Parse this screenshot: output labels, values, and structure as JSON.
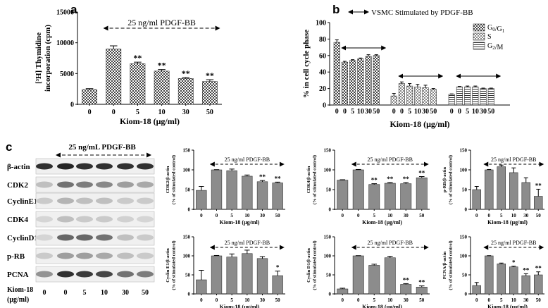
{
  "figure": {
    "panel_labels": [
      "a",
      "b",
      "c"
    ]
  },
  "colors": {
    "hatch": "#555555",
    "bar_gray": "#8c8c8c",
    "axis": "#000000"
  },
  "chart_data": [
    {
      "id": "a",
      "type": "bar",
      "fill": "checker",
      "categories": [
        "0",
        "0",
        "5",
        "10",
        "30",
        "50"
      ],
      "values": [
        2400,
        9000,
        6600,
        5400,
        4200,
        3700
      ],
      "errors": [
        150,
        500,
        250,
        250,
        150,
        300
      ],
      "marks": [
        "",
        "",
        "**",
        "**",
        "**",
        "**"
      ],
      "ylabel_lines": [
        "[³H] Thymidine",
        "incorporation (cpm)"
      ],
      "xlabel": "Kiom-18 (μg/ml)",
      "yticks": [
        "0",
        "5000",
        "10000",
        "15000"
      ],
      "ylim": [
        0,
        15000
      ],
      "annotation": "25 ng/ml PDGF-BB",
      "grid": false
    },
    {
      "id": "b",
      "type": "bar",
      "categories": [
        "0",
        "0",
        "5",
        "10",
        "30",
        "50"
      ],
      "series": [
        {
          "name": "G0/G1",
          "fill": "checker",
          "values": [
            76,
            52,
            54,
            56,
            59,
            60
          ],
          "errors": [
            3,
            1,
            1,
            1,
            2,
            1
          ]
        },
        {
          "name": "S",
          "fill": "dots",
          "values": [
            11,
            26,
            23,
            22,
            21,
            19
          ],
          "errors": [
            3,
            2,
            3,
            3,
            3,
            1
          ]
        },
        {
          "name": "G2/M",
          "fill": "hlines",
          "values": [
            13,
            22,
            22,
            22,
            20,
            20
          ],
          "errors": [
            0.5,
            0.5,
            1,
            1,
            0.5,
            0.5
          ]
        }
      ],
      "legend_labels": [
        {
          "base": "G",
          "sub": "0",
          "mid": "/G",
          "sub2": "1"
        },
        {
          "base": "S",
          "sub": "",
          "mid": "",
          "sub2": ""
        },
        {
          "base": "G",
          "sub": "2",
          "mid": "/M",
          "sub2": ""
        }
      ],
      "legend_position": "top-right",
      "ylabel": "% in cell cycle phase",
      "xlabel": "Kiom-18 (μg/ml)",
      "yticks": [
        "0",
        "20",
        "40",
        "60",
        "80",
        "100"
      ],
      "ylim": [
        0,
        100
      ],
      "annotation": "VSMC Stimulated by PDGF-BB",
      "grid": false
    },
    {
      "id": "c1",
      "type": "bar",
      "categories": [
        "0",
        "0",
        "5",
        "10",
        "30",
        "50"
      ],
      "values": [
        48,
        100,
        98,
        84,
        70,
        67
      ],
      "errors": [
        10,
        0.5,
        4,
        3,
        3,
        2
      ],
      "marks": [
        "",
        "",
        "",
        "",
        "**",
        "**"
      ],
      "ylabel_lines": [
        "CDK2/β-actin",
        "(% of stimulated control)"
      ],
      "xlabel": "Kiom-18 (μg/ml)",
      "yticks": [
        "0",
        "50",
        "100",
        "150"
      ],
      "ylim": [
        0,
        150
      ],
      "annotation": "25 ng/ml PDGF-BB"
    },
    {
      "id": "c2",
      "type": "bar",
      "categories": [
        "0",
        "0",
        "5",
        "10",
        "30",
        "50"
      ],
      "values": [
        74,
        100,
        63,
        66,
        65,
        80
      ],
      "errors": [
        1,
        1,
        2,
        2,
        3,
        3
      ],
      "marks": [
        "",
        "",
        "**",
        "**",
        "**",
        "**"
      ],
      "ylabel_lines": [
        "CDK4/β-actin",
        "(% of stimulated control)"
      ],
      "xlabel": "Kiom-18 (μg/ml)",
      "yticks": [
        "0",
        "50",
        "100",
        "150"
      ],
      "ylim": [
        0,
        150
      ],
      "annotation": "25 ng/ml PDGF-BB"
    },
    {
      "id": "c3",
      "type": "bar",
      "categories": [
        "0",
        "0",
        "5",
        "10",
        "30",
        "50"
      ],
      "values": [
        50,
        100,
        108,
        93,
        68,
        33
      ],
      "errors": [
        8,
        1,
        4,
        12,
        12,
        18
      ],
      "marks": [
        "",
        "",
        "",
        "",
        "",
        "**"
      ],
      "ylabel_lines": [
        "p-RB/β-actin",
        "(% of stimulated control)"
      ],
      "xlabel": "Kiom-18 (μg/ml)",
      "yticks": [
        "0",
        "50",
        "100",
        "150"
      ],
      "ylim": [
        0,
        150
      ],
      "annotation": "25 ng/ml PDGF-BB"
    },
    {
      "id": "c4",
      "type": "bar",
      "categories": [
        "0",
        "0",
        "5",
        "10",
        "30",
        "50"
      ],
      "values": [
        37,
        100,
        97,
        106,
        93,
        48
      ],
      "errors": [
        25,
        1,
        8,
        9,
        5,
        12
      ],
      "marks": [
        "",
        "",
        "",
        "",
        "",
        "*"
      ],
      "ylabel_lines": [
        "Cyclin E1/β-actin",
        "(% of stimulated control)"
      ],
      "xlabel": "Kiom-18 (μg/ml)",
      "yticks": [
        "0",
        "50",
        "100",
        "150"
      ],
      "ylim": [
        0,
        150
      ],
      "annotation": "25 ng/ml PDGF-BB"
    },
    {
      "id": "c5",
      "type": "bar",
      "categories": [
        "0",
        "0",
        "5",
        "10",
        "30",
        "50"
      ],
      "values": [
        13,
        100,
        75,
        95,
        25,
        18
      ],
      "errors": [
        2,
        0.5,
        3,
        4,
        2,
        3
      ],
      "marks": [
        "",
        "",
        "",
        "",
        "**",
        "**"
      ],
      "ylabel_lines": [
        "Cyclin D1/β-actin",
        "(% of stimulated control)"
      ],
      "xlabel": "Kiom-18 (μg/ml)",
      "yticks": [
        "0",
        "50",
        "100",
        "150"
      ],
      "ylim": [
        0,
        150
      ],
      "annotation": "25 ng/ml PDGF-BB"
    },
    {
      "id": "c6",
      "type": "bar",
      "categories": [
        "0",
        "0",
        "5",
        "10",
        "30",
        "50"
      ],
      "values": [
        22,
        100,
        79,
        71,
        48,
        50
      ],
      "errors": [
        8,
        0.5,
        2,
        2,
        5,
        8
      ],
      "marks": [
        "",
        "",
        "",
        "*",
        "**",
        "**"
      ],
      "ylabel_lines": [
        "PCNA/β-actin",
        "(% of stimulated control)"
      ],
      "xlabel": "Kiom-18 (μg/ml)",
      "yticks": [
        "0",
        "50",
        "100",
        "150"
      ],
      "ylim": [
        0,
        150
      ],
      "annotation": "25 ng/ml PDGF-BB"
    }
  ],
  "western_blot": {
    "treatment_label": "25 ng/mL PDGF-BB",
    "proteins": [
      "β-actin",
      "CDK2",
      "CyclinE1",
      "CDK4",
      "CyclinD1",
      "p-RB",
      "PCNA"
    ],
    "intensities": [
      [
        0.85,
        0.9,
        0.85,
        0.85,
        0.85,
        0.85
      ],
      [
        0.2,
        0.55,
        0.5,
        0.45,
        0.35,
        0.3
      ],
      [
        0.15,
        0.25,
        0.2,
        0.2,
        0.15,
        0.15
      ],
      [
        0.1,
        0.2,
        0.15,
        0.15,
        0.12,
        0.1
      ],
      [
        0.1,
        0.6,
        0.6,
        0.55,
        0.2,
        0.15
      ],
      [
        0.15,
        0.35,
        0.35,
        0.3,
        0.2,
        0.15
      ],
      [
        0.4,
        0.85,
        0.8,
        0.75,
        0.55,
        0.5
      ]
    ],
    "dose_label_lines": [
      "Kiom-18",
      "(μg/ml)"
    ],
    "doses": [
      "0",
      "0",
      "5",
      "10",
      "30",
      "50"
    ]
  }
}
